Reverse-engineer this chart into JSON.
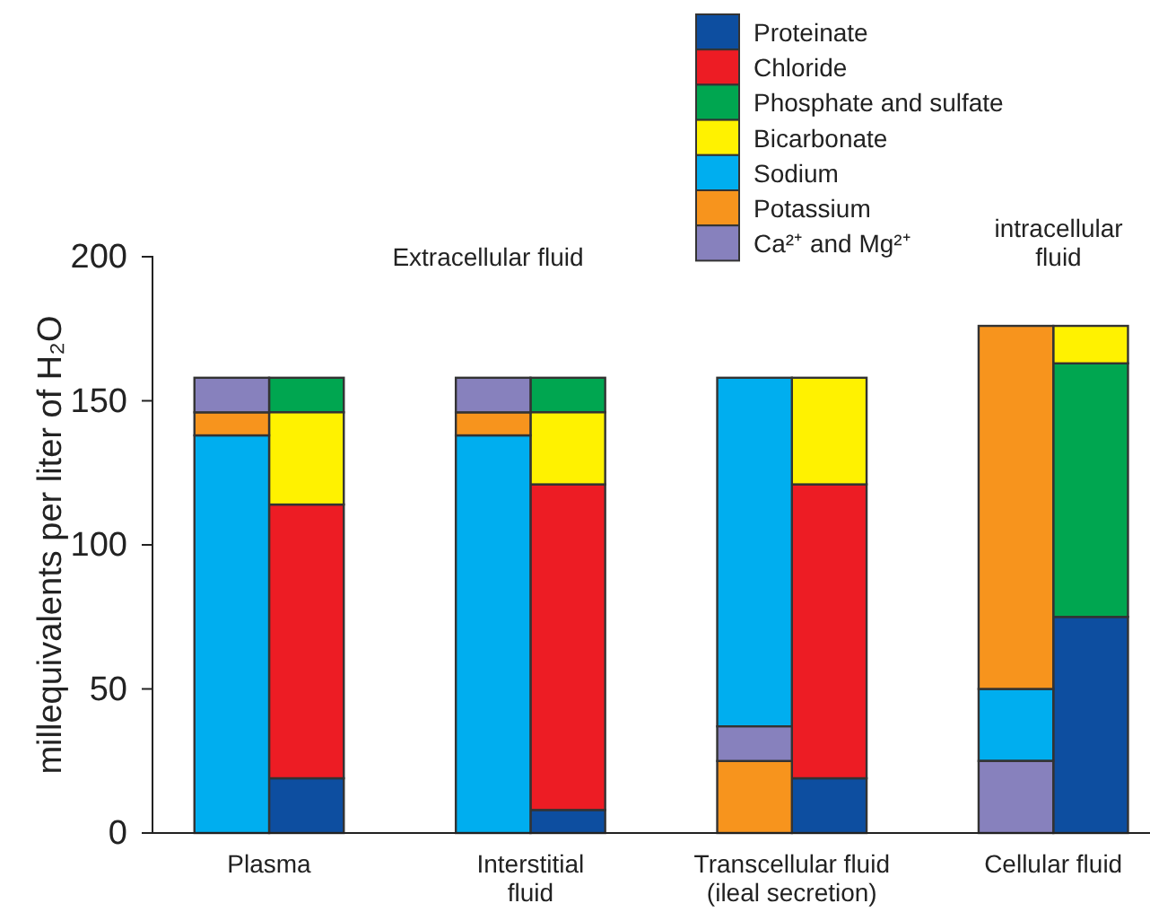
{
  "chart_data": {
    "type": "bar",
    "ylabel": "millequivalents per liter of H₂O",
    "categories": [
      null,
      "Plasma",
      null,
      null,
      null,
      null,
      null,
      null,
      "Interstitial\nfluid",
      null,
      null,
      null,
      null,
      null,
      null,
      "Transcellular fluid\n(ileal secretion)",
      null,
      null,
      null,
      null,
      null,
      null,
      "Cellular fluid",
      null
    ],
    "series": [
      {
        "name": "Proteinate",
        "color": "#0d4ea0",
        "base": [
          null,
          null,
          0,
          null,
          null,
          null,
          null,
          null,
          null,
          0,
          null,
          null,
          null,
          null,
          null,
          null,
          0,
          null,
          null,
          null,
          null,
          null,
          null,
          0
        ],
        "values": [
          null,
          null,
          19,
          null,
          null,
          null,
          null,
          null,
          null,
          8,
          null,
          null,
          null,
          null,
          null,
          null,
          19,
          null,
          null,
          null,
          null,
          null,
          null,
          75
        ]
      },
      {
        "name": "Chloride",
        "color": "#ed1c24",
        "base": [
          null,
          null,
          19,
          null,
          null,
          null,
          null,
          null,
          null,
          8,
          null,
          null,
          null,
          null,
          null,
          null,
          19,
          null,
          null,
          null,
          null,
          null,
          null,
          null
        ],
        "values": [
          null,
          null,
          95,
          null,
          null,
          null,
          null,
          null,
          null,
          113,
          null,
          null,
          null,
          null,
          null,
          null,
          102,
          null,
          null,
          null,
          null,
          null,
          null,
          null
        ]
      },
      {
        "name": "Phosphate and sulfate",
        "color": "#00a650",
        "base": [
          null,
          null,
          146,
          null,
          null,
          null,
          null,
          null,
          null,
          146,
          null,
          null,
          null,
          null,
          null,
          null,
          null,
          null,
          null,
          null,
          null,
          null,
          null,
          75
        ],
        "values": [
          null,
          null,
          12,
          null,
          null,
          null,
          null,
          null,
          null,
          12,
          null,
          null,
          null,
          null,
          null,
          null,
          null,
          null,
          null,
          null,
          null,
          null,
          null,
          88
        ]
      },
      {
        "name": "Bicarbonate",
        "color": "#fff200",
        "base": [
          null,
          null,
          114,
          null,
          null,
          null,
          null,
          null,
          null,
          121,
          null,
          null,
          null,
          null,
          null,
          null,
          121,
          null,
          null,
          null,
          null,
          null,
          null,
          163
        ],
        "values": [
          null,
          null,
          32,
          null,
          null,
          null,
          null,
          null,
          null,
          25,
          null,
          null,
          null,
          null,
          null,
          null,
          37,
          null,
          null,
          null,
          null,
          null,
          null,
          13
        ]
      },
      {
        "name": "Sodium",
        "color": "#00aeef",
        "base": [
          0,
          null,
          null,
          null,
          null,
          null,
          null,
          0,
          null,
          null,
          null,
          null,
          null,
          null,
          37,
          null,
          null,
          null,
          null,
          null,
          null,
          25,
          null,
          null
        ],
        "values": [
          138,
          null,
          null,
          null,
          null,
          null,
          null,
          138,
          null,
          null,
          null,
          null,
          null,
          null,
          121,
          null,
          null,
          null,
          null,
          null,
          null,
          25,
          null,
          null
        ]
      },
      {
        "name": "Potassium",
        "color": "#f7941d",
        "base": [
          138,
          null,
          null,
          null,
          null,
          null,
          null,
          138,
          null,
          null,
          null,
          null,
          null,
          null,
          0,
          null,
          null,
          null,
          null,
          null,
          null,
          50,
          null,
          null
        ],
        "values": [
          8,
          null,
          null,
          null,
          null,
          null,
          null,
          8,
          null,
          null,
          null,
          null,
          null,
          null,
          25,
          null,
          null,
          null,
          null,
          null,
          null,
          126,
          null,
          null
        ]
      },
      {
        "name": "Ca²⁺ and Mg²⁺",
        "color": "#8781bd",
        "base": [
          146,
          null,
          null,
          null,
          null,
          null,
          null,
          146,
          null,
          null,
          null,
          null,
          null,
          null,
          25,
          null,
          null,
          null,
          null,
          null,
          null,
          0,
          null,
          null
        ],
        "values": [
          12,
          null,
          null,
          null,
          null,
          null,
          null,
          12,
          null,
          null,
          null,
          null,
          null,
          null,
          12,
          null,
          null,
          null,
          null,
          null,
          null,
          25,
          null,
          null
        ]
      }
    ],
    "ylim": [
      0,
      200
    ],
    "yticks": [
      0,
      50,
      100,
      150,
      200
    ],
    "annotations": [
      {
        "text": "Extracellular fluid"
      },
      {
        "text": "intracellular\nfluid"
      }
    ],
    "legend": "top right"
  }
}
